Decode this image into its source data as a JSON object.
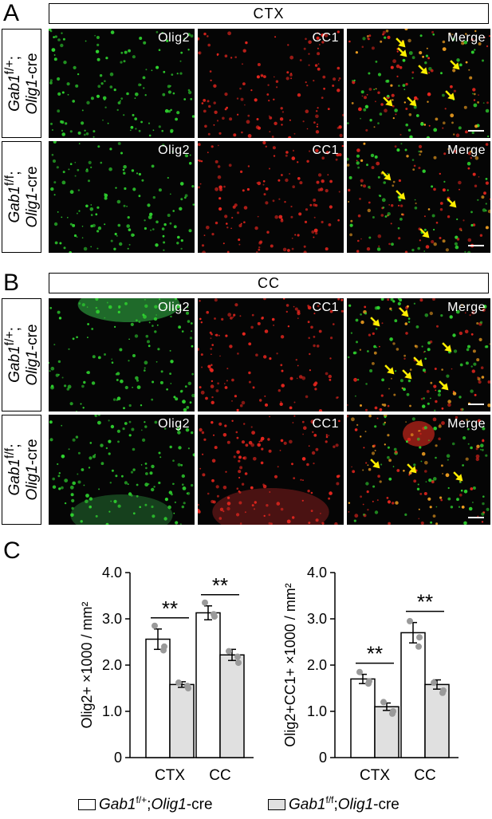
{
  "panel_a": {
    "letter": "A",
    "region": "CTX",
    "rows": [
      {
        "gene": "Gab1",
        "sup": "f/+",
        "sep": ";",
        "driver": "Olig1",
        "suffix": "-cre"
      },
      {
        "gene": "Gab1",
        "sup": "f/f",
        "sep": ";",
        "driver": "Olig1",
        "suffix": "-cre"
      }
    ],
    "channels": [
      "Olig2",
      "CC1",
      "Merge"
    ]
  },
  "panel_b": {
    "letter": "B",
    "region": "CC",
    "rows": [
      {
        "gene": "Gab1",
        "sup": "f/+",
        "sep": ";",
        "driver": "Olig1",
        "suffix": "-cre"
      },
      {
        "gene": "Gab1",
        "sup": "f/f",
        "sep": ";",
        "driver": "Olig1",
        "suffix": "-cre"
      }
    ],
    "channels": [
      "Olig2",
      "CC1",
      "Merge"
    ]
  },
  "panel_c": {
    "letter": "C"
  },
  "colors": {
    "olig2": "#2fd42f",
    "cc1": "#e8261e",
    "merge": "#f2a020",
    "arrow": "#ffee00",
    "control_bar": "#ffffff",
    "cko_bar": "#e0e0e0",
    "dot": "#9a9a9a"
  },
  "icons": {
    "arrow": "yellow-arrow-icon",
    "scale": "scale-bar-icon"
  },
  "chart_data": [
    {
      "type": "bar",
      "categories": [
        "CTX",
        "CC"
      ],
      "ylabel": "Olig2+ ×1000 / mm²",
      "ylim": [
        0,
        4.0
      ],
      "yticks": [
        "0",
        "1.0",
        "2.0",
        "3.0",
        "4.0"
      ],
      "series": [
        {
          "name": "Gab1f/+;Olig1-cre",
          "values": [
            2.56,
            3.13
          ],
          "errors": [
            0.22,
            0.15
          ],
          "points": [
            [
              2.85,
              2.4,
              2.32
            ],
            [
              3.35,
              3.05,
              3.1
            ]
          ]
        },
        {
          "name": "Gab1f/f;Olig1-cre",
          "values": [
            1.58,
            2.22
          ],
          "errors": [
            0.06,
            0.12
          ],
          "points": [
            [
              1.62,
              1.5,
              1.55
            ],
            [
              2.3,
              2.05,
              2.18
            ]
          ]
        }
      ],
      "significance": [
        "**",
        "**"
      ]
    },
    {
      "type": "bar",
      "categories": [
        "CTX",
        "CC"
      ],
      "ylabel": "Olig2+CC1+ ×1000 / mm²",
      "ylim": [
        0,
        4.0
      ],
      "yticks": [
        "0",
        "1.0",
        "2.0",
        "3.0",
        "4.0"
      ],
      "series": [
        {
          "name": "Gab1f/+;Olig1-cre",
          "values": [
            1.7,
            2.7
          ],
          "errors": [
            0.1,
            0.22
          ],
          "points": [
            [
              1.85,
              1.65,
              1.6
            ],
            [
              2.95,
              2.6,
              2.4
            ]
          ]
        },
        {
          "name": "Gab1f/f;Olig1-cre",
          "values": [
            1.1,
            1.58
          ],
          "errors": [
            0.08,
            0.1
          ],
          "points": [
            [
              1.2,
              1.0,
              0.95
            ],
            [
              1.62,
              1.45,
              1.4
            ]
          ]
        }
      ],
      "significance": [
        "**",
        "**"
      ]
    }
  ],
  "legend": [
    {
      "gene": "Gab1",
      "sup": "f/+",
      "rest": ";",
      "driver": "Olig1",
      "suffix": "-cre"
    },
    {
      "gene": "Gab1",
      "sup": "f/f",
      "rest": ";",
      "driver": "Olig1",
      "suffix": "-cre"
    }
  ]
}
